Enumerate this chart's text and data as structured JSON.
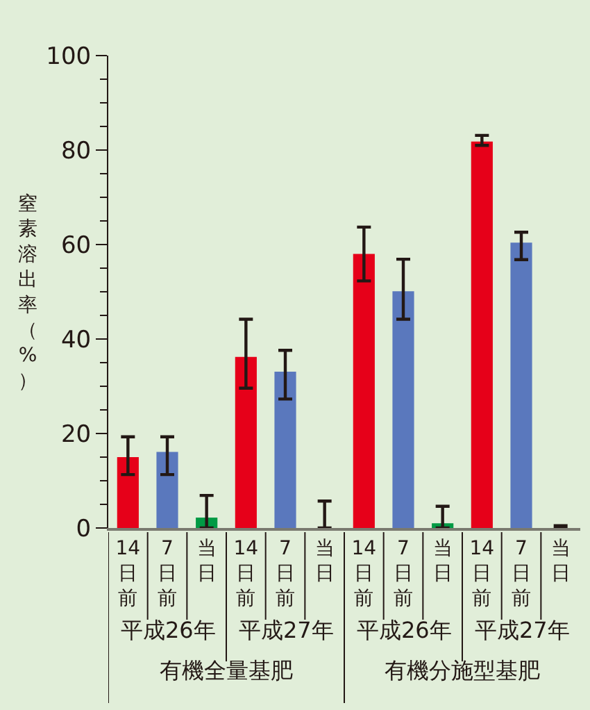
{
  "chart_data": {
    "type": "bar",
    "ylabel": "窒素溶出率（%）",
    "categories": [
      "14日前",
      "7日前",
      "当日",
      "14日前",
      "7日前",
      "当日",
      "14日前",
      "7日前",
      "当日",
      "14日前",
      "7日前",
      "当日"
    ],
    "values": [
      15,
      16.1,
      2.2,
      36.2,
      33.1,
      0,
      58,
      50.1,
      1,
      81.8,
      60.4,
      0
    ],
    "colors": [
      "#e60019",
      "#5a78bd",
      "#009a44",
      "#e60019",
      "#5a78bd",
      "#009a44",
      "#e60019",
      "#5a78bd",
      "#009a44",
      "#e60019",
      "#5a78bd",
      "#009a44"
    ],
    "errors": [
      [
        11.3,
        19.3
      ],
      [
        11.3,
        19.3
      ],
      [
        0,
        6.9
      ],
      [
        29.6,
        44.2
      ],
      [
        27.3,
        37.6
      ],
      [
        0,
        5.7
      ],
      [
        52.3,
        63.7
      ],
      [
        44.2,
        56.9
      ],
      [
        0,
        4.6
      ],
      [
        81,
        83.1
      ],
      [
        56.8,
        62.6
      ],
      [
        0,
        0.5
      ]
    ],
    "annotations": [
      "平成26年",
      "平成27年",
      "平成26年",
      "平成27年",
      "有機全量基肥",
      "有機分施型基肥"
    ],
    "ylim": [
      0,
      100
    ],
    "yticks": [
      0,
      20,
      40,
      60,
      80,
      100
    ],
    "grid": false
  }
}
